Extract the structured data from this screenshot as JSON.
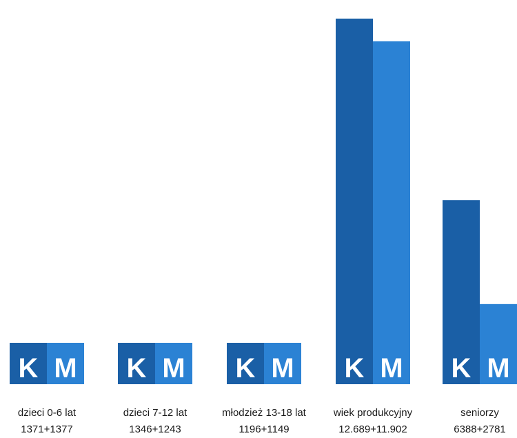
{
  "chart_data": {
    "type": "bar",
    "categories": [
      {
        "label": "dzieci 0-6 lat",
        "sublabel": "1371+1377"
      },
      {
        "label": "dzieci 7-12 lat",
        "sublabel": "1346+1243"
      },
      {
        "label": "młodzież 13-18 lat",
        "sublabel": "1196+1149"
      },
      {
        "label": "wiek produkcyjny",
        "sublabel": "12.689+11.902"
      },
      {
        "label": "seniorzy",
        "sublabel": "6388+2781"
      }
    ],
    "series": [
      {
        "name": "K",
        "color": "#1a5fa6",
        "values": [
          1371,
          1346,
          1196,
          12689,
          6388
        ]
      },
      {
        "name": "M",
        "color": "#2b82d4",
        "values": [
          1377,
          1243,
          1149,
          11902,
          2781
        ]
      }
    ],
    "ylim": [
      0,
      13000
    ],
    "grid": false,
    "legend": "none"
  }
}
